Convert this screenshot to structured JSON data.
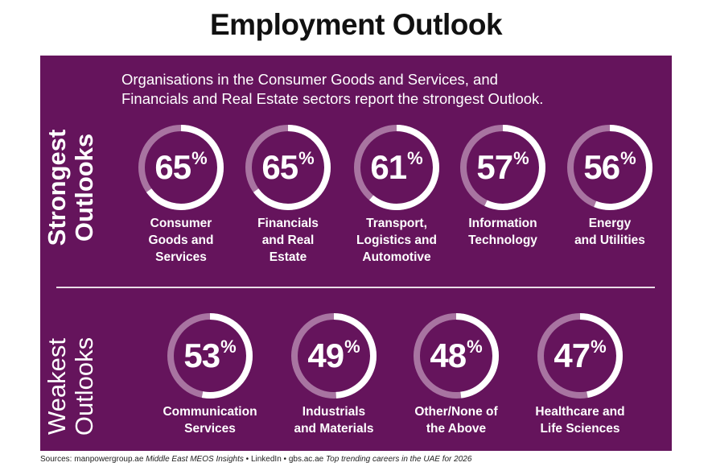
{
  "title": "Employment Outlook",
  "subtitle_line1": "Organisations in the Consumer Goods and Services, and",
  "subtitle_line2": "Financials and Real Estate sectors report the strongest Outlook.",
  "sections": {
    "strong": {
      "line1": "Strongest",
      "line2": "Outlooks"
    },
    "weak": {
      "line1": "Weakest",
      "line2": "Outlooks"
    }
  },
  "colors": {
    "panel": "#65145c",
    "ring_track": "#a874a1",
    "ring_fill": "#ffffff",
    "text": "#ffffff"
  },
  "chart_data": {
    "type": "radial-progress",
    "title": "Employment Outlook",
    "unit": "%",
    "strongest": [
      {
        "value": 65,
        "label_lines": [
          "Consumer",
          "Goods and",
          "Services"
        ]
      },
      {
        "value": 65,
        "label_lines": [
          "Financials",
          "and Real",
          "Estate"
        ]
      },
      {
        "value": 61,
        "label_lines": [
          "Transport,",
          "Logistics and",
          "Automotive"
        ]
      },
      {
        "value": 57,
        "label_lines": [
          "Information",
          "Technology"
        ]
      },
      {
        "value": 56,
        "label_lines": [
          "Energy",
          "and Utilities"
        ]
      }
    ],
    "weakest": [
      {
        "value": 53,
        "label_lines": [
          "Communication",
          "Services"
        ]
      },
      {
        "value": 49,
        "label_lines": [
          "Industrials",
          "and Materials"
        ]
      },
      {
        "value": 48,
        "label_lines": [
          "Other/None of",
          "the Above"
        ]
      },
      {
        "value": 47,
        "label_lines": [
          "Healthcare and",
          "Life Sciences"
        ]
      }
    ]
  },
  "sources": {
    "part1": "Sources: manpowergroup.ae ",
    "part2": "Middle East MEOS Insights",
    "part3": " • LinkedIn • gbs.ac.ae ",
    "part4": "Top trending careers in the UAE for 2026"
  }
}
